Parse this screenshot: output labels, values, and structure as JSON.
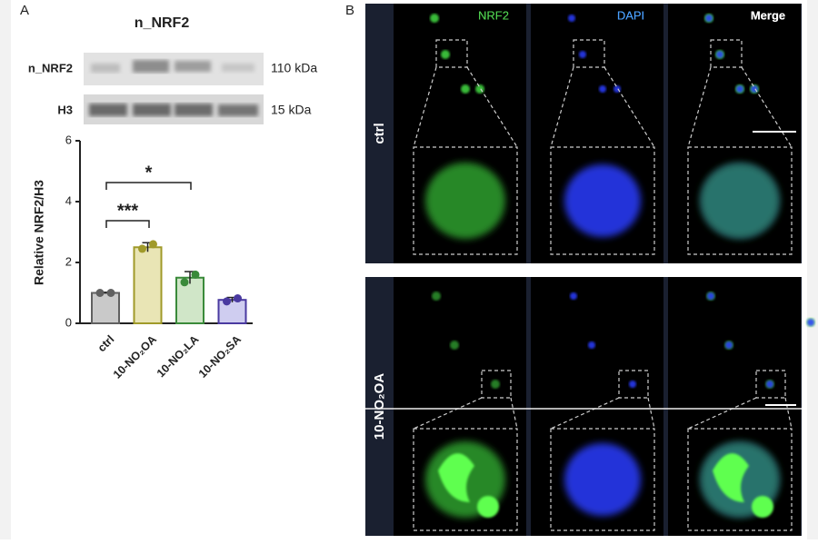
{
  "panel_a": {
    "label": "A"
  },
  "blot": {
    "title": "n_NRF2",
    "rows": [
      {
        "label": "n_NRF2",
        "size": "110 kDa"
      },
      {
        "label": "H3",
        "size": "15 kDa"
      }
    ]
  },
  "chart_data": {
    "type": "bar",
    "y_label": "Relative NRF2/H3",
    "categories": [
      "ctrl",
      "10-NO₂OA",
      "10-NO₂LA",
      "10-NO₂SA"
    ],
    "values": [
      1.0,
      2.5,
      1.5,
      0.77
    ],
    "errors": [
      0.02,
      0.15,
      0.2,
      0.08
    ],
    "points": [
      [
        1.0,
        1.0
      ],
      [
        2.45,
        2.6
      ],
      [
        1.35,
        1.6
      ],
      [
        0.72,
        0.82
      ]
    ],
    "colors": [
      "#c9c9c9",
      "#e9e5b5",
      "#d0e6c8",
      "#cfcdf0"
    ],
    "edge_colors": [
      "#606060",
      "#a09a2a",
      "#3a8a3a",
      "#4a3aa0"
    ],
    "ylim": [
      0,
      6
    ],
    "yticks": [
      0,
      2,
      4,
      6
    ],
    "annotations": [
      "***",
      "*"
    ]
  },
  "panel_b": {
    "label": "B",
    "columns": [
      "NRF2",
      "DAPI",
      "Merge"
    ],
    "rows": [
      "ctrl",
      "10-NO₂OA"
    ]
  }
}
